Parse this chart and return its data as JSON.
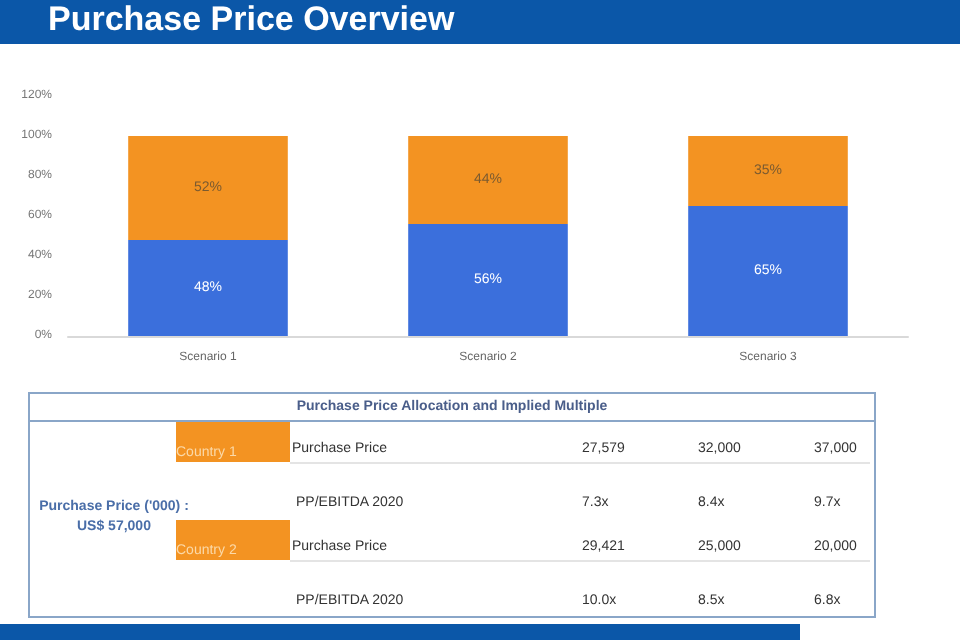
{
  "chart_data": [
    {
      "type": "bar",
      "title": "Purchase Price Overview",
      "categories": [
        "Scenario 1",
        "Scenario 2",
        "Scenario 3"
      ],
      "stacked": true,
      "series": [
        {
          "color": "#3b6fdc",
          "values": [
            48,
            56,
            65
          ],
          "value_labels": [
            "48%",
            "56%",
            "65%"
          ]
        },
        {
          "color": "#f39322",
          "values": [
            52,
            44,
            35
          ],
          "value_labels": [
            "52%",
            "44%",
            "35%"
          ]
        }
      ],
      "ylim": [
        0,
        120
      ],
      "yticks": [
        {
          "value": 0,
          "label": "0%"
        },
        {
          "value": 20,
          "label": "20%"
        },
        {
          "value": 40,
          "label": "40%"
        },
        {
          "value": 60,
          "label": "60%"
        },
        {
          "value": 80,
          "label": "80%"
        },
        {
          "value": 100,
          "label": "100%"
        },
        {
          "value": 120,
          "label": "120%"
        }
      ],
      "grid": false
    },
    {
      "type": "other",
      "title": "Purchase Price Allocation and Implied Multiple",
      "annotations": [
        "Purchase Price ('000) : US$ 57,000",
        "Country 1",
        "Purchase Price",
        "27,579",
        "32,000",
        "37,000",
        "PP/EBITDA 2020",
        "7.3x",
        "8.4x",
        "9.7x",
        "Country 2",
        "Purchase Price",
        "29,421",
        "25,000",
        "20,000",
        "PP/EBITDA 2020",
        "10.0x",
        "8.5x",
        "6.8x"
      ]
    }
  ]
}
